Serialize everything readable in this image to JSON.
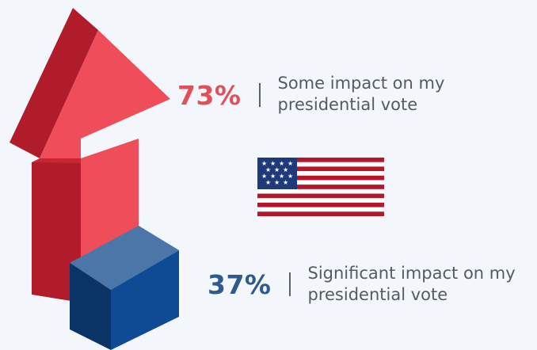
{
  "stats": [
    {
      "percent": "73%",
      "label_line1": "Some impact on my",
      "label_line2": "presidential vote",
      "color": "#e0505a"
    },
    {
      "percent": "37%",
      "label_line1": "Significant impact on my",
      "label_line2": "presidential vote",
      "color": "#2f5a8e"
    }
  ],
  "colors": {
    "background": "#f3f6fa",
    "arrow_front": "#f04d5a",
    "arrow_side": "#b01c2a",
    "arrow_top": "#c92634",
    "box_top": "#4a77a8",
    "box_front": "#0f4a94",
    "box_side": "#0a3466",
    "flag_red": "#b5162b",
    "flag_blue": "#1f3a7a"
  },
  "icons": {
    "arrow": "up-arrow-3d-icon",
    "box": "cube-3d-icon",
    "flag": "us-flag-icon"
  }
}
